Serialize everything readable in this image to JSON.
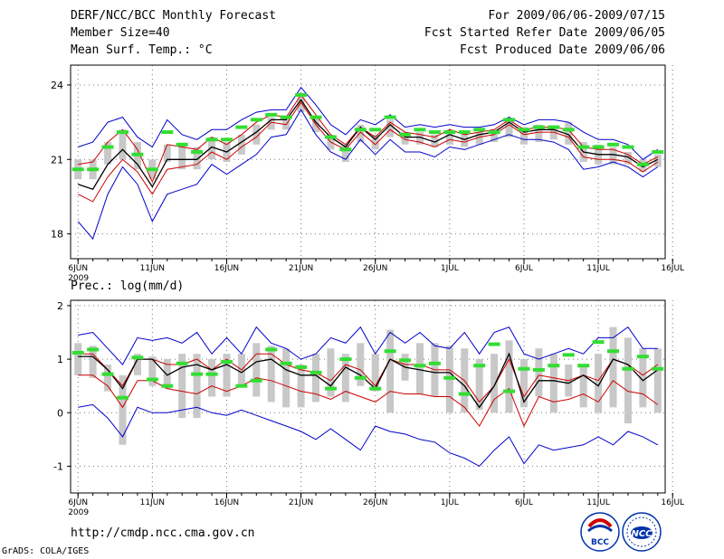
{
  "header": {
    "left_lines": [
      "DERF/NCC/BCC Monthly Forecast",
      "Member Size=40",
      "Mean Surf. Temp.: °C"
    ],
    "right_lines": [
      "For 2009/06/06-2009/07/15",
      "Fcst Started Refer Date 2009/06/05",
      "Fcst Produced Date 2009/06/06"
    ]
  },
  "chart_data": [
    {
      "type": "line",
      "title": "Mean Surf. Temp.: °C",
      "ylabel": "Mean Surf. Temp. (°C)",
      "ylim": [
        17,
        24.8
      ],
      "yticks": [
        18,
        21,
        24
      ],
      "xlim": [
        0.5,
        40.5
      ],
      "x": [
        1,
        2,
        3,
        4,
        5,
        6,
        7,
        8,
        9,
        10,
        11,
        12,
        13,
        14,
        15,
        16,
        17,
        18,
        19,
        20,
        21,
        22,
        23,
        24,
        25,
        26,
        27,
        28,
        29,
        30,
        31,
        32,
        33,
        34,
        35,
        36,
        37,
        38,
        39,
        40
      ],
      "xticks": [
        {
          "day": 1,
          "label": "6JUN",
          "sub": "2009"
        },
        {
          "day": 6,
          "label": "11JUN"
        },
        {
          "day": 11,
          "label": "16JUN"
        },
        {
          "day": 16,
          "label": "21JUN"
        },
        {
          "day": 21,
          "label": "26JUN"
        },
        {
          "day": 26,
          "label": "1JUL"
        },
        {
          "day": 31,
          "label": "6JUL"
        },
        {
          "day": 36,
          "label": "11JUL"
        },
        {
          "day": 41,
          "label": "16JUL"
        }
      ],
      "series": [
        {
          "name": "max",
          "color": "#0000cc",
          "values": [
            21.5,
            21.7,
            22.5,
            22.7,
            21.9,
            21.5,
            22.6,
            22.0,
            21.8,
            22.2,
            22.2,
            22.6,
            22.9,
            23.0,
            23.0,
            23.9,
            23.2,
            22.4,
            22.0,
            22.6,
            22.4,
            22.8,
            22.3,
            22.4,
            22.3,
            22.4,
            22.3,
            22.3,
            22.4,
            22.7,
            22.4,
            22.6,
            22.6,
            22.5,
            22.1,
            21.8,
            21.8,
            21.6,
            21.0,
            21.4
          ]
        },
        {
          "name": "upper",
          "color": "#cc0000",
          "values": [
            20.8,
            20.9,
            21.7,
            22.2,
            21.4,
            20.1,
            21.6,
            21.5,
            21.4,
            21.9,
            21.6,
            22.0,
            22.5,
            22.8,
            22.7,
            23.6,
            22.8,
            22.0,
            21.6,
            22.3,
            21.9,
            22.5,
            22.1,
            22.0,
            21.9,
            22.2,
            22.0,
            22.1,
            22.2,
            22.6,
            22.2,
            22.3,
            22.3,
            22.2,
            21.5,
            21.4,
            21.4,
            21.2,
            20.8,
            21.1
          ]
        },
        {
          "name": "mean",
          "color": "#000000",
          "values": [
            20.0,
            19.8,
            20.8,
            21.4,
            20.8,
            19.9,
            21.0,
            21.0,
            21.0,
            21.5,
            21.3,
            21.7,
            22.1,
            22.6,
            22.6,
            23.4,
            22.5,
            21.9,
            21.5,
            22.3,
            21.8,
            22.4,
            21.9,
            21.9,
            21.7,
            22.0,
            21.8,
            22.0,
            22.1,
            22.5,
            22.1,
            22.2,
            22.2,
            22.0,
            21.3,
            21.2,
            21.2,
            21.1,
            20.7,
            21.0
          ]
        },
        {
          "name": "lower",
          "color": "#cc0000",
          "values": [
            19.6,
            19.3,
            20.3,
            21.0,
            20.5,
            19.6,
            20.6,
            20.7,
            20.8,
            21.3,
            21.0,
            21.5,
            21.9,
            22.5,
            22.4,
            23.3,
            22.4,
            21.7,
            21.4,
            22.1,
            21.6,
            22.2,
            21.8,
            21.7,
            21.5,
            21.8,
            21.7,
            21.9,
            22.0,
            22.4,
            22.0,
            22.1,
            22.1,
            21.9,
            21.1,
            21.0,
            21.0,
            20.9,
            20.5,
            20.9
          ]
        },
        {
          "name": "min",
          "color": "#0000cc",
          "values": [
            18.5,
            17.8,
            19.6,
            20.7,
            20.0,
            18.5,
            19.6,
            19.8,
            20.0,
            20.8,
            20.4,
            20.8,
            21.2,
            21.9,
            22.0,
            23.0,
            22.0,
            21.3,
            21.0,
            21.8,
            21.2,
            21.8,
            21.3,
            21.3,
            21.1,
            21.5,
            21.4,
            21.6,
            21.8,
            22.0,
            21.8,
            21.8,
            21.7,
            21.4,
            20.6,
            20.7,
            20.9,
            20.7,
            20.3,
            20.7
          ]
        },
        {
          "name": "box_hi",
          "color": "#c8c8c8",
          "values": [
            21.0,
            21.0,
            21.7,
            22.2,
            21.7,
            21.0,
            21.6,
            21.6,
            21.5,
            21.9,
            21.7,
            22.0,
            22.4,
            22.7,
            22.7,
            23.5,
            22.7,
            22.0,
            21.6,
            22.4,
            22.0,
            22.6,
            22.1,
            22.1,
            22.0,
            22.2,
            22.1,
            22.1,
            22.2,
            22.6,
            22.3,
            22.4,
            22.3,
            22.5,
            21.7,
            21.6,
            21.5,
            21.3,
            21.0,
            21.2
          ]
        },
        {
          "name": "box_lo",
          "color": "#c8c8c8",
          "values": [
            20.2,
            20.2,
            20.8,
            21.0,
            20.6,
            20.2,
            20.9,
            20.6,
            20.6,
            21.0,
            20.9,
            21.2,
            21.6,
            22.2,
            22.2,
            22.9,
            22.1,
            21.4,
            20.9,
            21.7,
            21.4,
            21.9,
            21.6,
            21.6,
            21.5,
            21.6,
            21.5,
            21.6,
            21.7,
            21.9,
            21.6,
            21.7,
            21.8,
            21.6,
            20.9,
            20.8,
            20.8,
            20.8,
            20.5,
            20.7
          ]
        },
        {
          "name": "climatology",
          "color": "#33dd33",
          "values": [
            20.6,
            20.6,
            21.5,
            22.1,
            21.2,
            20.6,
            22.1,
            21.6,
            21.3,
            21.8,
            21.8,
            22.3,
            22.6,
            22.8,
            22.7,
            23.6,
            22.7,
            21.9,
            21.4,
            22.2,
            22.2,
            22.7,
            22.0,
            22.2,
            22.1,
            22.1,
            22.1,
            22.2,
            22.1,
            22.6,
            22.2,
            22.3,
            22.3,
            22.2,
            21.5,
            21.5,
            21.6,
            21.5,
            20.8,
            21.3
          ]
        }
      ]
    },
    {
      "type": "line",
      "title": "Prec.: log(mm/d)",
      "ylabel": "log(mm/d)",
      "ylim": [
        -1.5,
        2.1
      ],
      "yticks": [
        -1,
        0,
        1,
        2
      ],
      "xlim": [
        0.5,
        40.5
      ],
      "x": [
        1,
        2,
        3,
        4,
        5,
        6,
        7,
        8,
        9,
        10,
        11,
        12,
        13,
        14,
        15,
        16,
        17,
        18,
        19,
        20,
        21,
        22,
        23,
        24,
        25,
        26,
        27,
        28,
        29,
        30,
        31,
        32,
        33,
        34,
        35,
        36,
        37,
        38,
        39,
        40
      ],
      "xticks": [
        {
          "day": 1,
          "label": "6JUN",
          "sub": "2009"
        },
        {
          "day": 6,
          "label": "11JUN"
        },
        {
          "day": 11,
          "label": "16JUN"
        },
        {
          "day": 16,
          "label": "21JUN"
        },
        {
          "day": 21,
          "label": "26JUN"
        },
        {
          "day": 26,
          "label": "1JUL"
        },
        {
          "day": 31,
          "label": "6JUL"
        },
        {
          "day": 36,
          "label": "11JUL"
        },
        {
          "day": 41,
          "label": "16JUL"
        }
      ],
      "series": [
        {
          "name": "max",
          "color": "#0000cc",
          "values": [
            1.45,
            1.5,
            1.2,
            0.9,
            1.4,
            1.35,
            1.4,
            1.3,
            1.5,
            1.1,
            1.4,
            1.1,
            1.6,
            1.3,
            1.2,
            1.0,
            1.1,
            1.4,
            1.3,
            1.6,
            1.1,
            1.5,
            1.3,
            1.5,
            1.25,
            1.2,
            1.5,
            1.1,
            1.5,
            1.6,
            1.1,
            1.0,
            1.1,
            1.2,
            1.1,
            1.4,
            1.4,
            1.6,
            1.2,
            1.2
          ]
        },
        {
          "name": "upper",
          "color": "#cc0000",
          "values": [
            1.1,
            1.1,
            0.8,
            0.5,
            1.0,
            1.0,
            0.9,
            0.9,
            1.0,
            0.8,
            1.0,
            0.8,
            1.1,
            1.1,
            0.9,
            0.8,
            0.75,
            0.6,
            0.9,
            0.8,
            0.5,
            1.0,
            0.9,
            0.9,
            0.8,
            0.8,
            0.6,
            0.2,
            0.5,
            1.0,
            0.3,
            0.7,
            0.65,
            0.6,
            0.7,
            0.6,
            1.0,
            0.9,
            0.7,
            0.9
          ]
        },
        {
          "name": "mean",
          "color": "#000000",
          "values": [
            1.05,
            1.05,
            0.8,
            0.45,
            1.0,
            1.0,
            0.7,
            0.85,
            0.9,
            0.8,
            0.9,
            0.75,
            0.95,
            1.0,
            0.8,
            0.7,
            0.7,
            0.5,
            0.85,
            0.7,
            0.45,
            1.0,
            0.85,
            0.8,
            0.75,
            0.75,
            0.5,
            0.1,
            0.5,
            1.1,
            0.2,
            0.6,
            0.6,
            0.55,
            0.7,
            0.5,
            1.0,
            0.9,
            0.6,
            0.8
          ]
        },
        {
          "name": "lower",
          "color": "#cc0000",
          "values": [
            0.7,
            0.7,
            0.5,
            0.1,
            0.6,
            0.6,
            0.45,
            0.4,
            0.35,
            0.5,
            0.4,
            0.5,
            0.65,
            0.6,
            0.5,
            0.4,
            0.35,
            0.25,
            0.4,
            0.3,
            0.2,
            0.4,
            0.35,
            0.35,
            0.3,
            0.3,
            0.1,
            -0.25,
            0.25,
            0.45,
            -0.25,
            0.3,
            0.2,
            0.25,
            0.35,
            0.2,
            0.6,
            0.4,
            0.35,
            0.15
          ]
        },
        {
          "name": "min",
          "color": "#0000cc",
          "values": [
            0.1,
            0.15,
            -0.1,
            -0.45,
            0.1,
            0.0,
            0.0,
            0.05,
            0.1,
            0.0,
            -0.05,
            0.05,
            -0.05,
            -0.15,
            -0.25,
            -0.35,
            -0.5,
            -0.3,
            -0.5,
            -0.7,
            -0.25,
            -0.35,
            -0.4,
            -0.5,
            -0.55,
            -0.75,
            -0.85,
            -1.0,
            -0.7,
            -0.45,
            -0.95,
            -0.6,
            -0.7,
            -0.65,
            -0.6,
            -0.45,
            -0.6,
            -0.35,
            -0.45,
            -0.6
          ]
        },
        {
          "name": "box_hi",
          "color": "#c8c8c8",
          "values": [
            1.3,
            1.25,
            0.9,
            0.7,
            1.1,
            1.05,
            1.0,
            1.1,
            1.1,
            1.0,
            1.1,
            1.1,
            1.3,
            1.25,
            1.2,
            0.9,
            1.1,
            1.2,
            1.1,
            1.3,
            1.1,
            1.55,
            1.1,
            1.3,
            1.3,
            1.25,
            1.2,
            1.0,
            1.1,
            1.35,
            1.0,
            1.2,
            1.1,
            0.9,
            0.85,
            1.1,
            1.6,
            1.4,
            1.2,
            1.2
          ]
        },
        {
          "name": "box_lo",
          "color": "#c8c8c8",
          "values": [
            0.7,
            0.65,
            0.4,
            -0.6,
            0.7,
            0.5,
            0.45,
            -0.1,
            -0.1,
            0.3,
            0.3,
            0.5,
            0.3,
            0.2,
            0.1,
            0.1,
            0.2,
            0.3,
            0.2,
            0.5,
            0.4,
            0.0,
            0.6,
            0.35,
            0.3,
            0.0,
            0.0,
            0.05,
            0.0,
            0.0,
            0.1,
            0.3,
            0.0,
            0.3,
            0.1,
            0.0,
            0.1,
            -0.2,
            0.1,
            0.0
          ]
        },
        {
          "name": "climatology",
          "color": "#33dd33",
          "values": [
            1.12,
            1.18,
            0.72,
            0.28,
            1.03,
            0.62,
            0.5,
            0.92,
            0.72,
            0.72,
            0.95,
            0.5,
            0.6,
            1.18,
            0.92,
            0.85,
            0.75,
            0.45,
            1.0,
            0.65,
            0.45,
            1.15,
            0.98,
            0.88,
            0.92,
            0.65,
            0.35,
            0.88,
            1.28,
            0.4,
            0.82,
            0.8,
            0.88,
            1.08,
            0.88,
            1.32,
            1.15,
            0.82,
            1.05,
            0.82
          ]
        }
      ]
    }
  ],
  "footer": {
    "url": "http://cmdp.ncc.cma.gov.cn",
    "credit": "GrADS: COLA/IGES",
    "logo_left_text": "BCC",
    "logo_right_text": "NCC"
  },
  "colors": {
    "outline": "#0000cc",
    "band": "#cc0000",
    "mean": "#000000",
    "box": "#c8c8c8",
    "climatology": "#33dd33"
  }
}
